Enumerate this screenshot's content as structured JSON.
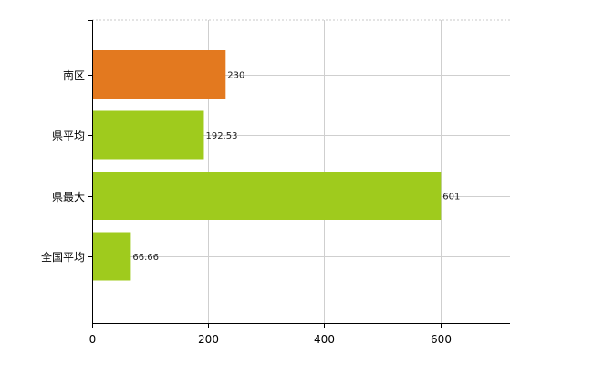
{
  "chart_data": {
    "type": "bar",
    "orientation": "horizontal",
    "categories": [
      "南区",
      "県平均",
      "県最大",
      "全国平均"
    ],
    "values": [
      230,
      192.53,
      601,
      66.66
    ],
    "value_labels": [
      "230",
      "192.53",
      "601",
      "66.66"
    ],
    "bar_colors": [
      "#E3791F",
      "#9FCB1D",
      "#9FCB1D",
      "#9FCB1D"
    ],
    "xlim": [
      0,
      720
    ],
    "x_ticks": [
      0,
      200,
      400,
      600
    ],
    "x_tick_labels": [
      "0",
      "200",
      "400",
      "600"
    ],
    "grid": true,
    "title": "",
    "xlabel": "",
    "ylabel": ""
  }
}
